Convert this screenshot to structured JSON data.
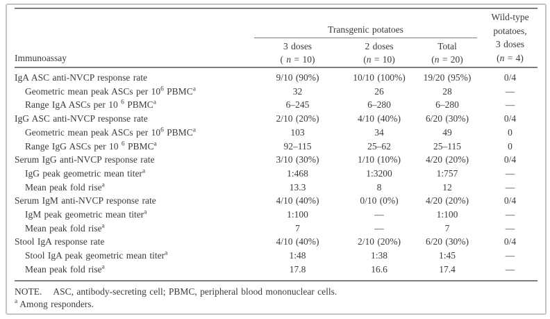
{
  "colors": {
    "text": "#3a3a3a",
    "rule": "#7e7e7e",
    "frame": "#c4c4c4",
    "background": "#ffffff"
  },
  "table": {
    "header": {
      "immunoassay_label": "Immunoassay",
      "group_label": "Transgenic potatoes",
      "columns": [
        {
          "line1": "3 doses",
          "paren_open": "( ",
          "n_var": "n",
          "paren_rest": " = 10)"
        },
        {
          "line1": "2 doses",
          "paren_open": "(",
          "n_var": "n",
          "paren_rest": " = 10)"
        },
        {
          "line1": "Total",
          "paren_open": "(",
          "n_var": "n",
          "paren_rest": " = 20)"
        }
      ],
      "wild_column": {
        "line1": "Wild-type",
        "line2": "potatoes,",
        "line3": "3 doses",
        "paren_open": "(",
        "n_var": "n",
        "paren_rest": " = 4)"
      }
    },
    "rows": [
      {
        "indent": false,
        "label": [
          [
            "t",
            "IgA ASC anti-NVCP response rate"
          ]
        ],
        "values": [
          "9/10 (90%)",
          "10/10 (100%)",
          "19/20 (95%)",
          "0/4"
        ]
      },
      {
        "indent": true,
        "label": [
          [
            "t",
            "Geometric mean peak ASCs per 10"
          ],
          [
            "s",
            "6"
          ],
          [
            "t",
            " PBMC"
          ],
          [
            "s",
            "a"
          ]
        ],
        "values": [
          "32",
          "26",
          "28",
          "—"
        ]
      },
      {
        "indent": true,
        "label": [
          [
            "t",
            "Range IgA ASCs per 10 "
          ],
          [
            "s",
            "6"
          ],
          [
            "t",
            " PBMC"
          ],
          [
            "s",
            "a"
          ]
        ],
        "values": [
          "6–245",
          "6–280",
          "6–280",
          "—"
        ]
      },
      {
        "indent": false,
        "label": [
          [
            "t",
            "IgG ASC anti-NVCP response rate"
          ]
        ],
        "values": [
          "2/10 (20%)",
          "4/10 (40%)",
          "6/20 (30%)",
          "0/4"
        ]
      },
      {
        "indent": true,
        "label": [
          [
            "t",
            "Geometric mean peak ASCs per 10"
          ],
          [
            "s",
            "6"
          ],
          [
            "t",
            " PBMC"
          ],
          [
            "s",
            "a"
          ]
        ],
        "values": [
          "103",
          "34",
          "49",
          "0"
        ]
      },
      {
        "indent": true,
        "label": [
          [
            "t",
            "Range IgG ASCs per 10 "
          ],
          [
            "s",
            "6"
          ],
          [
            "t",
            " PBMC"
          ],
          [
            "s",
            "a"
          ]
        ],
        "values": [
          "92–115",
          "25–62",
          "25–115",
          "0"
        ]
      },
      {
        "indent": false,
        "label": [
          [
            "t",
            "Serum IgG anti-NVCP response rate"
          ]
        ],
        "values": [
          "3/10 (30%)",
          "1/10 (10%)",
          "4/20 (20%)",
          "0/4"
        ]
      },
      {
        "indent": true,
        "label": [
          [
            "t",
            "IgG peak geometric mean titer"
          ],
          [
            "s",
            "a"
          ]
        ],
        "values": [
          "1:468",
          "1:3200",
          "1:757",
          "—"
        ]
      },
      {
        "indent": true,
        "label": [
          [
            "t",
            "Mean peak fold rise"
          ],
          [
            "s",
            "a"
          ]
        ],
        "values": [
          "13.3",
          "8",
          "12",
          "—"
        ]
      },
      {
        "indent": false,
        "label": [
          [
            "t",
            "Serum IgM anti-NVCP response rate"
          ]
        ],
        "values": [
          "4/10 (40%)",
          "0/10 (0%)",
          "4/20 (20%)",
          "0/4"
        ]
      },
      {
        "indent": true,
        "label": [
          [
            "t",
            "IgM peak geometric mean titer"
          ],
          [
            "s",
            "a"
          ]
        ],
        "values": [
          "1:100",
          "—",
          "1:100",
          "—"
        ]
      },
      {
        "indent": true,
        "label": [
          [
            "t",
            "Mean peak fold rise"
          ],
          [
            "s",
            "a"
          ]
        ],
        "values": [
          "7",
          "—",
          "7",
          "—"
        ]
      },
      {
        "indent": false,
        "label": [
          [
            "t",
            "Stool IgA response rate"
          ]
        ],
        "values": [
          "4/10 (40%)",
          "2/10 (20%)",
          "6/20 (30%)",
          "0/4"
        ]
      },
      {
        "indent": true,
        "label": [
          [
            "t",
            "Stool IgA peak geometric mean titer"
          ],
          [
            "s",
            "a"
          ]
        ],
        "values": [
          "1:48",
          "1:38",
          "1:45",
          "—"
        ]
      },
      {
        "indent": true,
        "label": [
          [
            "t",
            "Mean peak fold rise"
          ],
          [
            "s",
            "a"
          ]
        ],
        "values": [
          "17.8",
          "16.6",
          "17.4",
          "—"
        ]
      }
    ],
    "note": {
      "label": "NOTE.",
      "text": "ASC, antibody-secreting cell; PBMC, peripheral blood mononuclear cells.",
      "footnote_marker": "a",
      "footnote_text": "Among responders."
    }
  }
}
